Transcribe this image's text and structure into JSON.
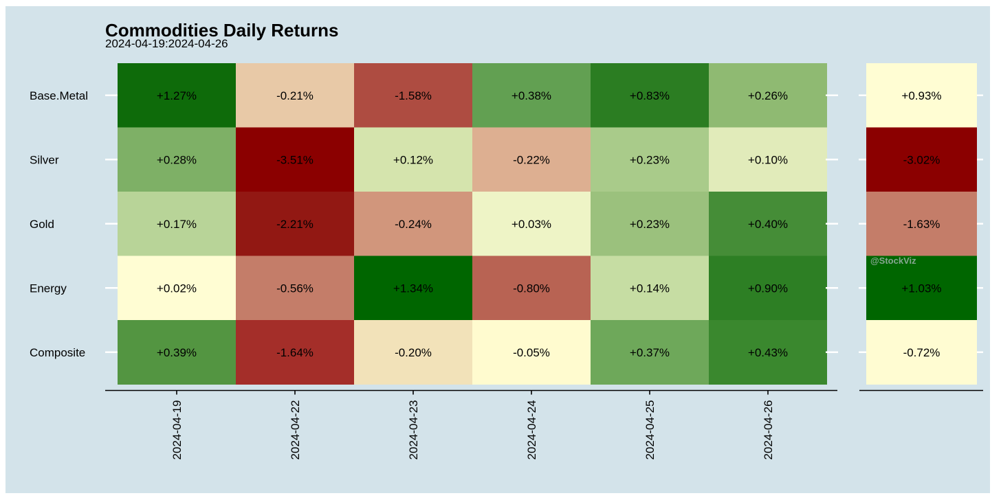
{
  "chart_data": {
    "type": "heatmap",
    "title": "Commodities Daily Returns",
    "subtitle": "2024-04-19:2024-04-26",
    "rows": [
      "Base.Metal",
      "Silver",
      "Gold",
      "Energy",
      "Composite"
    ],
    "columns": [
      "2024-04-19",
      "2024-04-22",
      "2024-04-23",
      "2024-04-24",
      "2024-04-25",
      "2024-04-26"
    ],
    "values": [
      [
        1.27,
        -0.21,
        -1.58,
        0.38,
        0.83,
        0.26
      ],
      [
        0.28,
        -3.51,
        0.12,
        -0.22,
        0.23,
        0.1
      ],
      [
        0.17,
        -2.21,
        -0.24,
        0.03,
        0.23,
        0.4
      ],
      [
        0.02,
        -0.56,
        1.34,
        -0.8,
        0.14,
        0.9
      ],
      [
        0.39,
        -1.64,
        -0.2,
        -0.05,
        0.37,
        0.43
      ]
    ],
    "labels": [
      [
        "+1.27%",
        "-0.21%",
        "-1.58%",
        "+0.38%",
        "+0.83%",
        "+0.26%"
      ],
      [
        "+0.28%",
        "-3.51%",
        "+0.12%",
        "-0.22%",
        "+0.23%",
        "+0.10%"
      ],
      [
        "+0.17%",
        "-2.21%",
        "-0.24%",
        "+0.03%",
        "+0.23%",
        "+0.40%"
      ],
      [
        "+0.02%",
        "-0.56%",
        "+1.34%",
        "-0.80%",
        "+0.14%",
        "+0.90%"
      ],
      [
        "+0.39%",
        "-1.64%",
        "-0.20%",
        "-0.05%",
        "+0.37%",
        "+0.43%"
      ]
    ],
    "cell_colors": [
      [
        "#0e6b0a",
        "#e8c9a7",
        "#ae4c41",
        "#62a052",
        "#2b7d22",
        "#8fba72"
      ],
      [
        "#7eb066",
        "#8b0000",
        "#d5e4ad",
        "#ddaf91",
        "#a9cb8a",
        "#e1ebba"
      ],
      [
        "#b8d498",
        "#921813",
        "#d1967c",
        "#eef4c6",
        "#9bc17d",
        "#458d37"
      ],
      [
        "#fffdd3",
        "#c47d69",
        "#006600",
        "#b86353",
        "#c6dda3",
        "#2d7f24"
      ],
      [
        "#539541",
        "#a42e29",
        "#f2e2b9",
        "#fffbcf",
        "#6ea85a",
        "#3a882e"
      ]
    ],
    "summary": {
      "values": [
        0.93,
        -3.02,
        -1.63,
        1.03,
        -0.72
      ],
      "labels": [
        "+0.93%",
        "-3.02%",
        "-1.63%",
        "+1.03%",
        "-0.72%"
      ],
      "colors": [
        "#fffdd3",
        "#8b0000",
        "#c47d69",
        "#006600",
        "#fffcd2"
      ]
    },
    "watermark": "@StockViz"
  },
  "colors": {
    "background": "#d3e3ea",
    "text": "#000000",
    "axis": "#000000",
    "tick": "#ffffff"
  }
}
